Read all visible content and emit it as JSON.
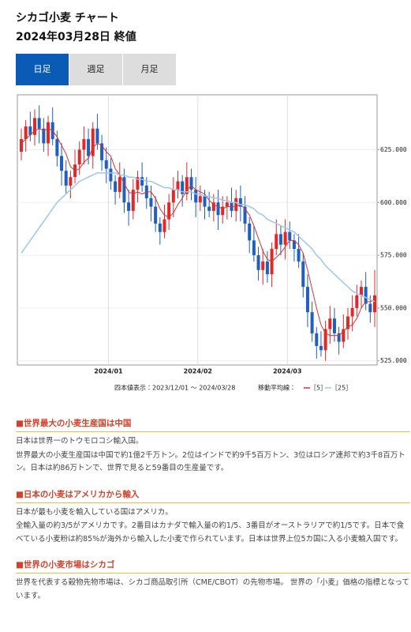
{
  "header": {
    "title": "シカゴ小麦 チャート",
    "subtitle": "2024年03月28日 終値"
  },
  "tabs": [
    "日足",
    "週足",
    "月足"
  ],
  "chart_data": {
    "type": "candlestick",
    "range_label": "四本値表示：2023/12/01 ～ 2024/03/28",
    "moving_average_label": "移動平均線：",
    "categories": [
      null,
      null,
      null,
      null,
      null,
      null,
      null,
      null,
      null,
      null,
      null,
      null,
      null,
      null,
      null,
      null,
      null,
      null,
      null,
      null,
      "2024/01",
      null,
      null,
      null,
      null,
      null,
      null,
      null,
      null,
      null,
      null,
      null,
      null,
      null,
      null,
      null,
      null,
      null,
      null,
      null,
      "2024/02",
      null,
      null,
      null,
      null,
      null,
      null,
      null,
      null,
      null,
      null,
      null,
      null,
      null,
      null,
      null,
      null,
      null,
      null,
      null,
      "2024/03",
      null,
      null,
      null,
      null,
      null,
      null,
      null,
      null,
      null,
      null,
      null,
      null,
      null,
      null,
      null,
      null,
      null,
      null,
      null
    ],
    "open": [
      624,
      630,
      636,
      632,
      640,
      635,
      628,
      638,
      630,
      622,
      615,
      608,
      612,
      618,
      625,
      630,
      622,
      635,
      628,
      620,
      616,
      610,
      605,
      612,
      600,
      596,
      606,
      612,
      608,
      602,
      598,
      590,
      586,
      592,
      600,
      606,
      610,
      604,
      612,
      606,
      600,
      603,
      598,
      596,
      600,
      594,
      598,
      600,
      596,
      602,
      598,
      590,
      582,
      575,
      568,
      572,
      566,
      578,
      585,
      580,
      586,
      582,
      578,
      572,
      560,
      548,
      538,
      532,
      530,
      540,
      545,
      538,
      534,
      540,
      546,
      550,
      556,
      560,
      552,
      548
    ],
    "high": [
      635,
      639,
      643,
      644,
      646,
      640,
      641,
      645,
      634,
      628,
      620,
      615,
      625,
      629,
      636,
      635,
      638,
      642,
      632,
      626,
      621,
      613,
      619,
      616,
      606,
      611,
      615,
      619,
      612,
      608,
      603,
      593,
      599,
      604,
      612,
      615,
      613,
      619,
      616,
      612,
      608,
      606,
      605,
      604,
      606,
      603,
      603,
      607,
      606,
      608,
      603,
      593,
      589,
      579,
      578,
      577,
      581,
      592,
      589,
      592,
      591,
      585,
      585,
      576,
      566,
      553,
      541,
      539,
      544,
      551,
      550,
      541,
      547,
      550,
      556,
      561,
      563,
      567,
      556,
      568
    ],
    "low": [
      620,
      624,
      629,
      627,
      628,
      624,
      622,
      627,
      617,
      608,
      604,
      602,
      609,
      613,
      618,
      618,
      616,
      625,
      615,
      609,
      606,
      599,
      602,
      595,
      589,
      592,
      600,
      605,
      597,
      591,
      586,
      580,
      583,
      587,
      593,
      602,
      598,
      601,
      601,
      593,
      596,
      592,
      593,
      591,
      587,
      590,
      592,
      593,
      591,
      591,
      586,
      576,
      572,
      563,
      561,
      562,
      560,
      575,
      575,
      573,
      578,
      572,
      569,
      555,
      541,
      534,
      526,
      527,
      525,
      533,
      534,
      528,
      531,
      535,
      539,
      546,
      550,
      549,
      543,
      541
    ],
    "close": [
      630,
      636,
      632,
      640,
      635,
      628,
      638,
      630,
      622,
      615,
      608,
      612,
      618,
      625,
      630,
      622,
      635,
      628,
      620,
      616,
      610,
      605,
      612,
      600,
      596,
      606,
      612,
      608,
      602,
      598,
      590,
      586,
      592,
      600,
      606,
      610,
      604,
      612,
      606,
      600,
      603,
      598,
      596,
      600,
      594,
      598,
      600,
      596,
      602,
      598,
      590,
      582,
      575,
      568,
      572,
      566,
      578,
      585,
      580,
      586,
      582,
      578,
      572,
      560,
      548,
      538,
      532,
      530,
      540,
      545,
      538,
      534,
      540,
      546,
      550,
      556,
      560,
      552,
      548,
      556
    ],
    "up_color": "#e02828",
    "down_color": "#1f5fbf",
    "series": [
      {
        "name": "［5］",
        "color": "#e03030",
        "values": [
          628,
          630,
          632,
          634,
          635,
          634,
          635,
          634,
          631,
          627,
          623,
          617,
          615,
          616,
          619,
          621,
          626,
          628,
          627,
          624,
          622,
          616,
          613,
          609,
          605,
          604,
          605,
          604,
          605,
          605,
          602,
          597,
          594,
          593,
          595,
          599,
          602,
          606,
          608,
          606,
          605,
          604,
          601,
          599,
          598,
          597,
          598,
          598,
          598,
          599,
          597,
          594,
          589,
          583,
          577,
          573,
          572,
          574,
          576,
          579,
          582,
          582,
          580,
          576,
          568,
          559,
          550,
          542,
          538,
          537,
          537,
          537,
          539,
          541,
          542,
          545,
          550,
          553,
          553,
          554
        ]
      },
      {
        "name": "［25］",
        "color": "#9cc7ec",
        "values": [
          576,
          579,
          582,
          585,
          588,
          591,
          594,
          597,
          600,
          602,
          604,
          606,
          608,
          610,
          611,
          612,
          613,
          614,
          614,
          614,
          614,
          614,
          613,
          613,
          612,
          612,
          611,
          611,
          610,
          610,
          609,
          608,
          607,
          607,
          606,
          606,
          605,
          605,
          605,
          604,
          604,
          603,
          603,
          602,
          602,
          601,
          601,
          600,
          600,
          599,
          599,
          598,
          597,
          595,
          594,
          592,
          591,
          590,
          589,
          588,
          587,
          586,
          584,
          582,
          580,
          578,
          575,
          573,
          570,
          568,
          566,
          564,
          562,
          560,
          558,
          557,
          556,
          555,
          554,
          553
        ]
      }
    ],
    "ylim": [
      523,
      651
    ],
    "yticks": [
      {
        "value": 525,
        "label": "525.000"
      },
      {
        "value": 550,
        "label": "550.000"
      },
      {
        "value": 575,
        "label": "575.000"
      },
      {
        "value": 600,
        "label": "600.000"
      },
      {
        "value": 625,
        "label": "625.000"
      }
    ],
    "grid": true
  },
  "sections": [
    {
      "heading": "■世界最大の小麦生産国は中国",
      "paragraphs": [
        "日本は世界一のトウモロコシ輸入国。",
        "世界最大の小麦生産国は中国で約1億2千万トン。2位はインドで約9千5百万トン、3位はロシア連邦で約3千8百万トン。日本は約86万トンで、世界で見ると59番目の生産量です。"
      ]
    },
    {
      "heading": "■日本の小麦はアメリカから輸入",
      "paragraphs": [
        "日本が最も小麦を輸入している国はアメリカ。",
        "全輸入量の約3/5がアメリカです。2番目はカナダで輸入量の約1/5、3番目がオーストラリアで約1/5です。日本で食べている小麦粉は約85%が海外から輸入した小麦で作られています。日本は世界上位5カ国に入る小麦輸入国です。"
      ]
    },
    {
      "heading": "■世界の小麦市場はシカゴ",
      "paragraphs": [
        "世界を代表する穀物先物市場は、シカゴ商品取引所（CME/CBOT）の先物市場。 世界の「小麦」価格の指標となっています。"
      ]
    }
  ]
}
